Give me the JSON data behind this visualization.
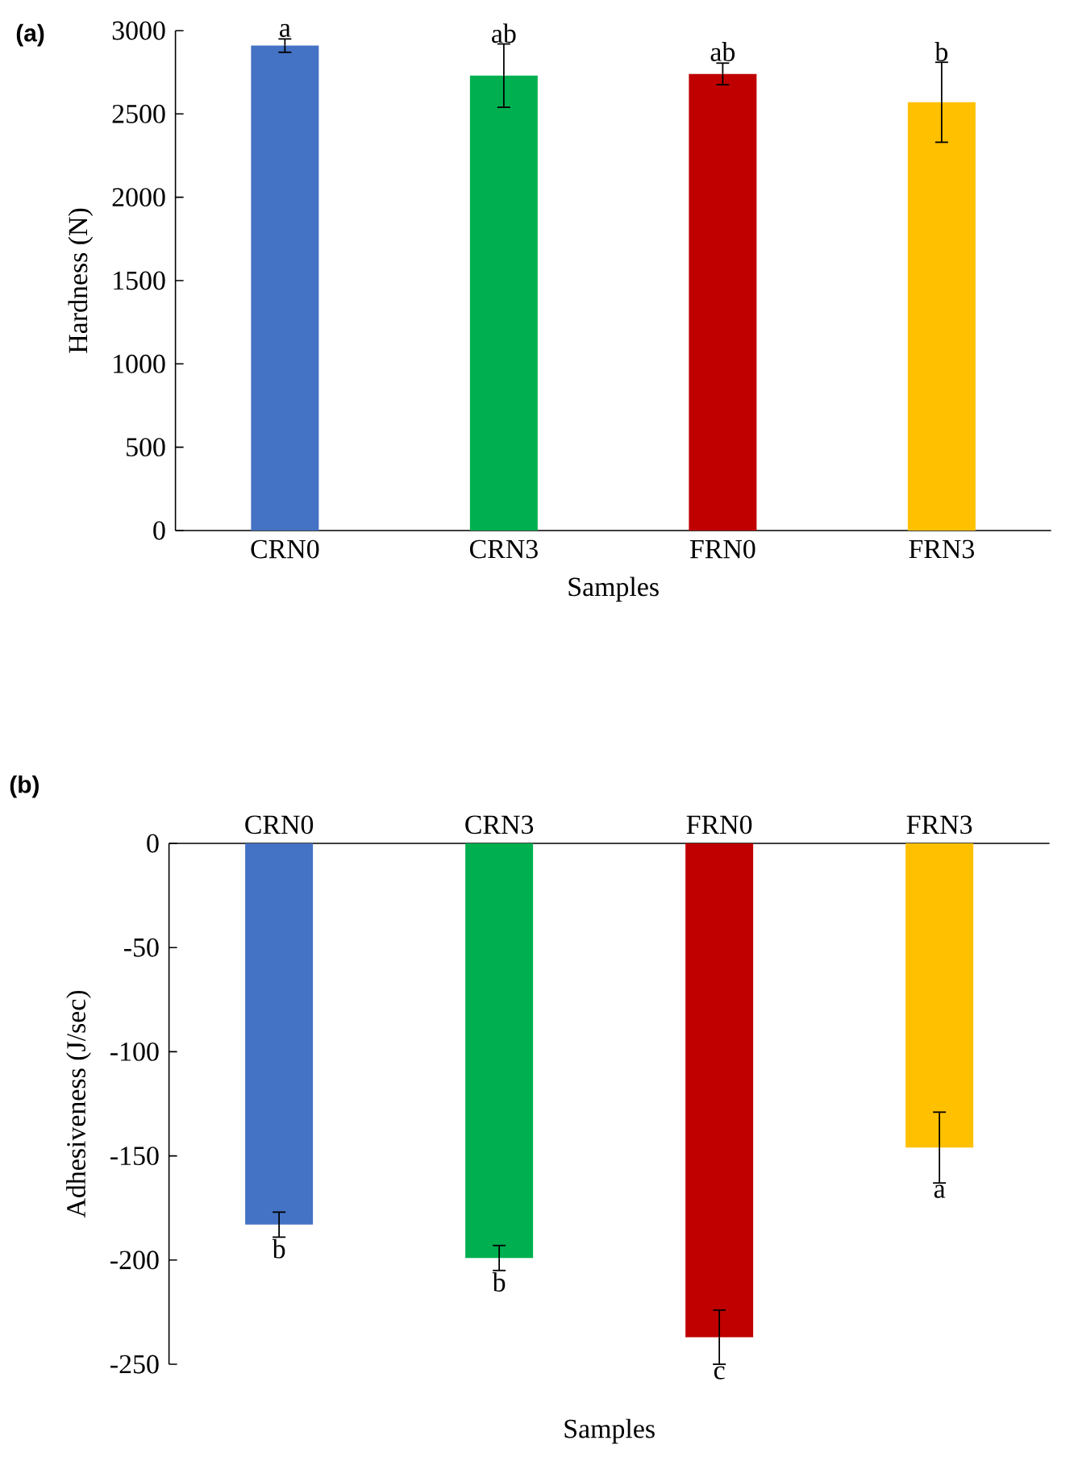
{
  "chart_data": [
    {
      "type": "bar",
      "title": "(a)",
      "xlabel": "Samples",
      "ylabel": "Hardness (N)",
      "categories": [
        "CRN0",
        "CRN3",
        "FRN0",
        "FRN3"
      ],
      "values": [
        2910,
        2730,
        2740,
        2570
      ],
      "errors": [
        40,
        190,
        65,
        240
      ],
      "colors": [
        "#4472c4",
        "#00b050",
        "#c00000",
        "#ffc000"
      ],
      "ylim": [
        0,
        3000
      ],
      "yticks": [
        0,
        500,
        1000,
        1500,
        2000,
        2500,
        3000
      ],
      "annotations": [
        {
          "text": "a",
          "x": "CRN0",
          "y": 2950
        },
        {
          "text": "ab",
          "x": "CRN3",
          "y": 2915
        },
        {
          "text": "ab",
          "x": "FRN0",
          "y": 2805
        },
        {
          "text": "b",
          "x": "FRN3",
          "y": 2805
        }
      ]
    },
    {
      "type": "bar",
      "title": "(b)",
      "xlabel": "Samples",
      "ylabel": "Adhesiveness (J/sec)",
      "categories": [
        "CRN0",
        "CRN3",
        "FRN0",
        "FRN3"
      ],
      "values": [
        -183,
        -199,
        -237,
        -146
      ],
      "errors": [
        6,
        6,
        13,
        17
      ],
      "colors": [
        "#4472c4",
        "#00b050",
        "#c00000",
        "#ffc000"
      ],
      "ylim": [
        -250,
        0
      ],
      "yticks": [
        -250,
        -200,
        -150,
        -100,
        -50,
        0
      ],
      "annotations": [
        {
          "text": "b",
          "x": "CRN0",
          "y": -189
        },
        {
          "text": "b",
          "x": "CRN3",
          "y": -205
        },
        {
          "text": "c",
          "x": "FRN0",
          "y": -250
        },
        {
          "text": "a",
          "x": "FRN3",
          "y": -163
        }
      ]
    }
  ]
}
